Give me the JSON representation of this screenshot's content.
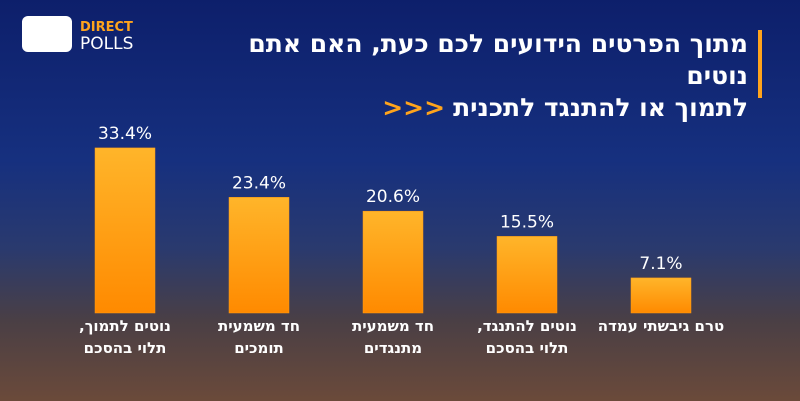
{
  "logo": {
    "line1": "DIRECT",
    "line2": "POLLS"
  },
  "chart_data": {
    "type": "bar",
    "title": [
      "מתוך הפרטים הידועים לכם כעת, האם אתם נוטים",
      "לתמוך או להתנגד לתכנית"
    ],
    "title_marker": "<<<",
    "categories": [
      [
        "נוטים לתמוך,",
        "תלוי בהסכם"
      ],
      [
        "חד משמעית",
        "תומכים"
      ],
      [
        "חד משמעית",
        "מתנגדים"
      ],
      [
        "נוטים להתנגד,",
        "תלוי בהסכם"
      ],
      [
        "טרם גיבשתי עמדה"
      ]
    ],
    "values": [
      33.4,
      23.4,
      20.6,
      15.5,
      7.1
    ],
    "value_labels": [
      "33.4%",
      "23.4%",
      "20.6%",
      "15.5%",
      "7.1%"
    ],
    "color": "#ff9a10",
    "ylim": [
      0,
      35
    ]
  }
}
